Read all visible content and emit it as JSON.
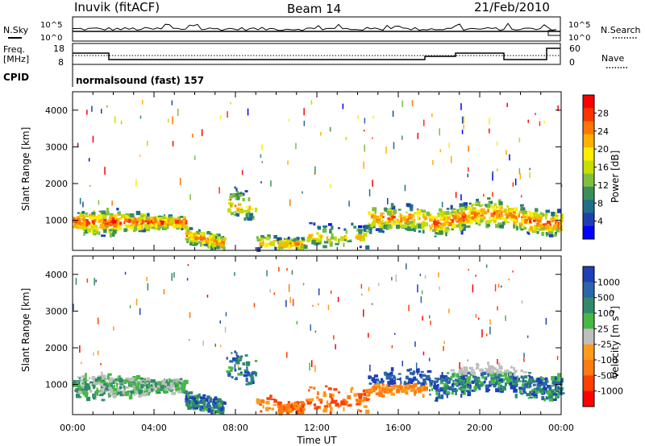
{
  "header": {
    "station": "Inuvik (fitACF)",
    "beam": "Beam 14",
    "date": "21/Feb/2010"
  },
  "summary_panels": {
    "nsky_label": "N.Sky",
    "nsearch_label": "N.Search",
    "nsky_ticks": [
      "10^5",
      "10^0"
    ],
    "nsky_right_ticks": [
      "10^5",
      "10^0"
    ],
    "freq_label_1": "Freq.",
    "freq_label_2": "[MHz]",
    "freq_ticks": [
      "18",
      "8"
    ],
    "nave_ticks": [
      "60",
      "0"
    ],
    "nave_label": "Nave",
    "cpid_label": "CPID",
    "cpid_text": "normalsound (fast) 157"
  },
  "chart_data": [
    {
      "type": "heatmap",
      "name": "power",
      "xlabel": "Time UT",
      "ylabel": "Slant Range [km]",
      "x_ticks": [
        "00:00",
        "04:00",
        "08:00",
        "12:00",
        "16:00",
        "20:00",
        "00:00"
      ],
      "y_ticks": [
        1000,
        2000,
        3000,
        4000
      ],
      "xlim_hours": [
        0,
        24
      ],
      "ylim_km": [
        180,
        4500
      ],
      "colorbar_label": "Power [dB]",
      "colorbar_ticks": [
        28,
        24,
        20,
        16,
        12,
        8,
        4
      ],
      "colors": [
        "#ff0000",
        "#ff3300",
        "#ff7700",
        "#ffb000",
        "#ffee00",
        "#c8dd00",
        "#7fbf3f",
        "#3a8f5a",
        "#1f6f8a",
        "#1f3fb0",
        "#0000ff"
      ]
    },
    {
      "type": "heatmap",
      "name": "velocity",
      "xlabel": "Time UT",
      "ylabel": "Slant Range [km]",
      "x_ticks": [
        "00:00",
        "04:00",
        "08:00",
        "12:00",
        "16:00",
        "20:00",
        "00:00"
      ],
      "y_ticks": [
        1000,
        2000,
        3000,
        4000
      ],
      "xlim_hours": [
        0,
        24
      ],
      "ylim_km": [
        180,
        4500
      ],
      "colorbar_label": "Velocity [m s",
      "colorbar_unit_sup": "-1",
      "colorbar_unit_close": "]",
      "colorbar_ticks": [
        "1000",
        "500",
        "100",
        "25",
        "-25",
        "-100",
        "-500",
        "-1000"
      ],
      "colors": [
        "#1d3fb8",
        "#2a66a8",
        "#2f8a6a",
        "#45b845",
        "#bebebe",
        "#ff9a1a",
        "#ff7a10",
        "#ff4000",
        "#ff0000"
      ]
    }
  ]
}
